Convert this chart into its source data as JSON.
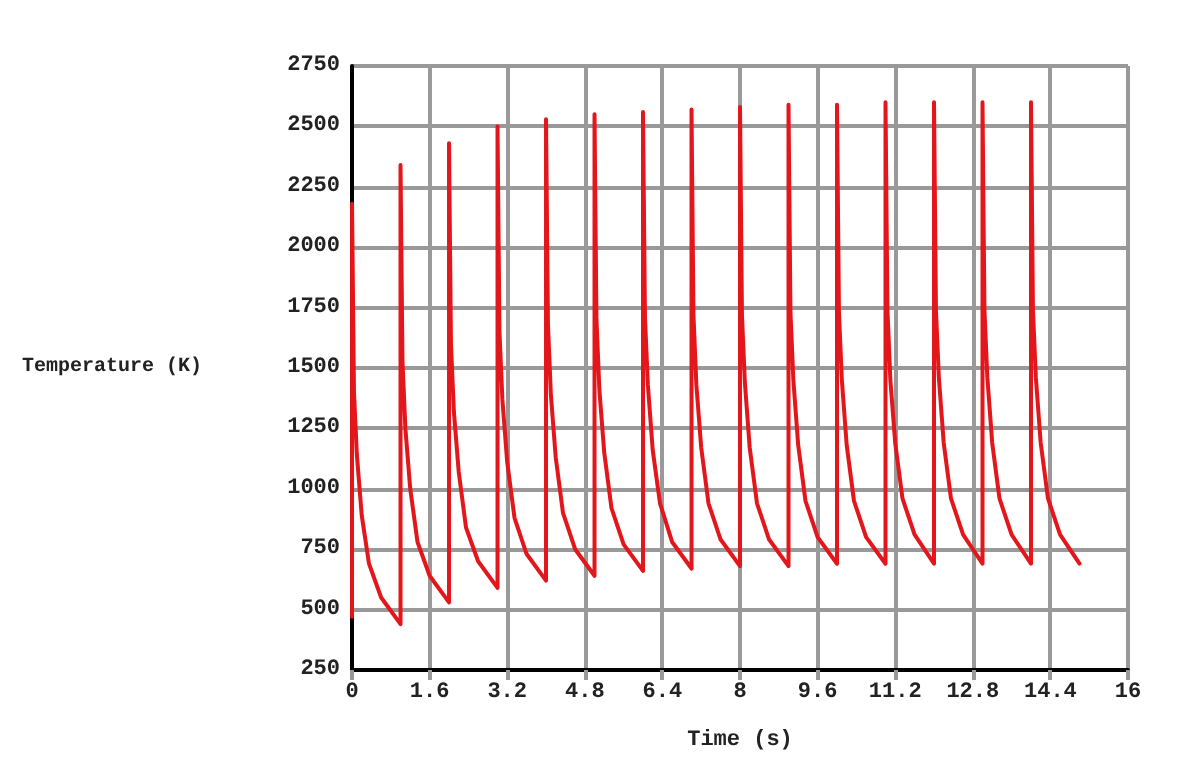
{
  "chart_data": {
    "type": "line",
    "xlabel": "Time (s)",
    "ylabel": "Temperature (K)",
    "x": [
      0,
      0,
      0.04,
      0.1,
      0.2,
      0.35,
      0.6,
      1,
      1,
      1.04,
      1.1,
      1.2,
      1.35,
      1.6,
      2,
      2,
      2.04,
      2.1,
      2.2,
      2.35,
      2.6,
      3,
      3,
      3.04,
      3.1,
      3.2,
      3.35,
      3.6,
      4,
      4,
      4.04,
      4.1,
      4.2,
      4.35,
      4.6,
      5,
      5,
      5.04,
      5.1,
      5.2,
      5.35,
      5.6,
      6,
      6,
      6.04,
      6.1,
      6.2,
      6.35,
      6.6,
      7,
      7,
      7.04,
      7.1,
      7.2,
      7.35,
      7.6,
      8,
      8,
      8.04,
      8.1,
      8.2,
      8.35,
      8.6,
      9,
      9,
      9.04,
      9.1,
      9.2,
      9.35,
      9.6,
      10,
      10,
      10.04,
      10.1,
      10.2,
      10.35,
      10.6,
      11,
      11,
      11.04,
      11.1,
      11.2,
      11.35,
      11.6,
      12,
      12,
      12.04,
      12.1,
      12.2,
      12.35,
      12.6,
      13,
      13,
      13.04,
      13.1,
      13.2,
      13.35,
      13.6,
      14,
      14,
      14.04,
      14.1,
      14.2,
      14.35,
      14.6,
      15
    ],
    "series": [
      {
        "color": "#e3161b",
        "values": [
          470,
          2180,
          1400,
          1140,
          890,
          690,
          550,
          440,
          2340,
          1530,
          1250,
          1000,
          780,
          640,
          530,
          2430,
          1600,
          1320,
          1070,
          840,
          700,
          590,
          2500,
          1650,
          1370,
          1110,
          880,
          730,
          620,
          2530,
          1680,
          1390,
          1130,
          900,
          750,
          640,
          2550,
          1700,
          1410,
          1150,
          920,
          770,
          660,
          2560,
          1710,
          1430,
          1160,
          940,
          780,
          670,
          2570,
          1720,
          1430,
          1170,
          940,
          790,
          680,
          2580,
          1720,
          1440,
          1170,
          940,
          790,
          680,
          2590,
          1730,
          1450,
          1180,
          950,
          800,
          690,
          2590,
          1730,
          1450,
          1180,
          950,
          800,
          690,
          2600,
          1740,
          1450,
          1190,
          960,
          810,
          690,
          2600,
          1740,
          1460,
          1190,
          960,
          810,
          690,
          2600,
          1740,
          1460,
          1190,
          960,
          810,
          690,
          2600,
          1740,
          1460,
          1190,
          960,
          810,
          690
        ]
      }
    ],
    "xlim": [
      0,
      16
    ],
    "xticks": [
      0,
      1.6,
      3.2,
      4.8,
      6.4,
      8,
      9.6,
      11.2,
      12.8,
      14.4,
      16
    ],
    "ylim": [
      250,
      2750
    ],
    "yticks": [
      250,
      500,
      750,
      1000,
      1250,
      1500,
      1750,
      2000,
      2250,
      2500,
      2750
    ],
    "grid": true,
    "marker": "none",
    "line_style": "solid"
  }
}
